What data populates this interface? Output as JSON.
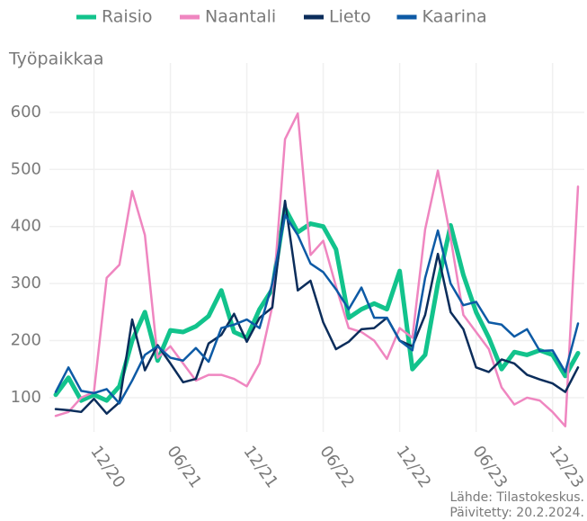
{
  "chart_data": {
    "type": "line",
    "y_label": "Työpaikkaa",
    "categories": [
      null,
      null,
      null,
      "12/20",
      null,
      null,
      null,
      null,
      null,
      "06/21",
      null,
      null,
      null,
      null,
      null,
      "12/21",
      null,
      null,
      null,
      null,
      null,
      "06/22",
      null,
      null,
      null,
      null,
      null,
      "12/22",
      null,
      null,
      null,
      null,
      null,
      "06/23",
      null,
      null,
      null,
      null,
      null,
      "12/23",
      null,
      null
    ],
    "series": [
      {
        "name": "Raisio",
        "color": "#12c38c",
        "values": [
          105,
          135,
          95,
          105,
          95,
          120,
          200,
          250,
          165,
          218,
          215,
          225,
          243,
          288,
          215,
          205,
          255,
          290,
          432,
          390,
          405,
          400,
          360,
          240,
          255,
          265,
          255,
          322,
          150,
          175,
          300,
          402,
          315,
          250,
          205,
          150,
          180,
          175,
          183,
          175,
          138,
          178
        ]
      },
      {
        "name": "Naantali",
        "color": "#ef86c0",
        "values": [
          68,
          75,
          100,
          110,
          310,
          333,
          462,
          385,
          170,
          190,
          160,
          130,
          140,
          140,
          133,
          120,
          160,
          260,
          553,
          598,
          350,
          375,
          295,
          222,
          215,
          200,
          168,
          222,
          205,
          395,
          498,
          380,
          245,
          215,
          185,
          118,
          88,
          100,
          95,
          75,
          50,
          470
        ]
      },
      {
        "name": "Lieto",
        "color": "#0b2d5b",
        "values": [
          80,
          78,
          75,
          98,
          72,
          92,
          237,
          148,
          192,
          160,
          127,
          133,
          195,
          210,
          247,
          198,
          240,
          258,
          445,
          288,
          305,
          232,
          185,
          198,
          220,
          222,
          240,
          200,
          190,
          245,
          352,
          250,
          220,
          153,
          145,
          167,
          160,
          140,
          132,
          125,
          110,
          153
        ]
      },
      {
        "name": "Kaarina",
        "color": "#0d5aa5",
        "values": [
          110,
          153,
          112,
          108,
          115,
          90,
          130,
          175,
          190,
          170,
          165,
          187,
          163,
          222,
          228,
          237,
          222,
          300,
          420,
          385,
          335,
          320,
          290,
          255,
          293,
          240,
          240,
          200,
          183,
          310,
          393,
          300,
          262,
          268,
          232,
          228,
          207,
          220,
          182,
          183,
          145,
          230
        ]
      }
    ],
    "ylim": [
      40,
      655
    ],
    "yticks": [
      100,
      200,
      300,
      400,
      500,
      600
    ],
    "grid": true,
    "legend": "top",
    "source": [
      "Lähde: Tilastokeskus.",
      "Päivitetty: 20.2.2024."
    ]
  }
}
